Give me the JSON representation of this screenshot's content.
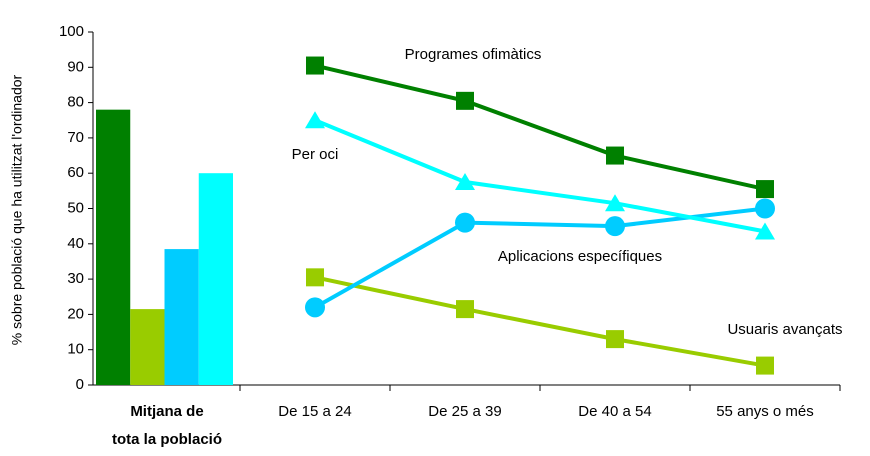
{
  "chart_data": {
    "type": "combo",
    "y_label": "% sobre població que ha utilitzat l'ordinador",
    "average_label": [
      "Mitjana de",
      "tota la població"
    ],
    "categories": [
      "De 15 a 24",
      "De 25 a 39",
      "De 40 a 54",
      "55 anys o més"
    ],
    "ylim": [
      0,
      100
    ],
    "yticks": [
      0,
      10,
      20,
      30,
      40,
      50,
      60,
      70,
      80,
      90,
      100
    ],
    "series": [
      {
        "name": "Programes ofimàtics",
        "color": "#008000",
        "marker": "square",
        "average": 78,
        "values": [
          90.5,
          80.5,
          65,
          55.5
        ]
      },
      {
        "name": "Usuaris avançats",
        "color": "#99cc00",
        "marker": "square",
        "average": 21.5,
        "values": [
          30.5,
          21.5,
          13,
          5.5
        ]
      },
      {
        "name": "Aplicacions específiques",
        "color": "#00ccff",
        "marker": "circle",
        "average": 38.5,
        "values": [
          22,
          46,
          45,
          50
        ]
      },
      {
        "name": "Per oci",
        "color": "#00ffff",
        "marker": "triangle",
        "average": 60,
        "values": [
          75,
          57.5,
          51.5,
          43.5
        ]
      }
    ]
  }
}
